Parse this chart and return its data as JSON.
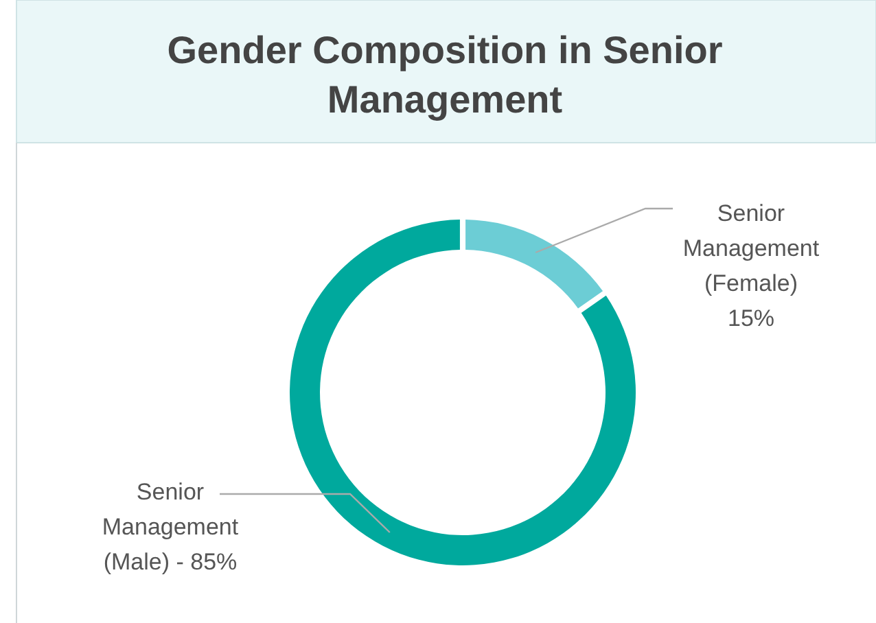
{
  "chart_data": {
    "type": "donut",
    "title": "Gender Composition in Senior Management",
    "categories": [
      "Senior Management (Female)",
      "Senior Management (Male) -"
    ],
    "values": [
      15,
      85
    ],
    "value_labels": [
      "15%",
      "85%"
    ],
    "colors": [
      "#6ccdd5",
      "#00a99d"
    ]
  }
}
